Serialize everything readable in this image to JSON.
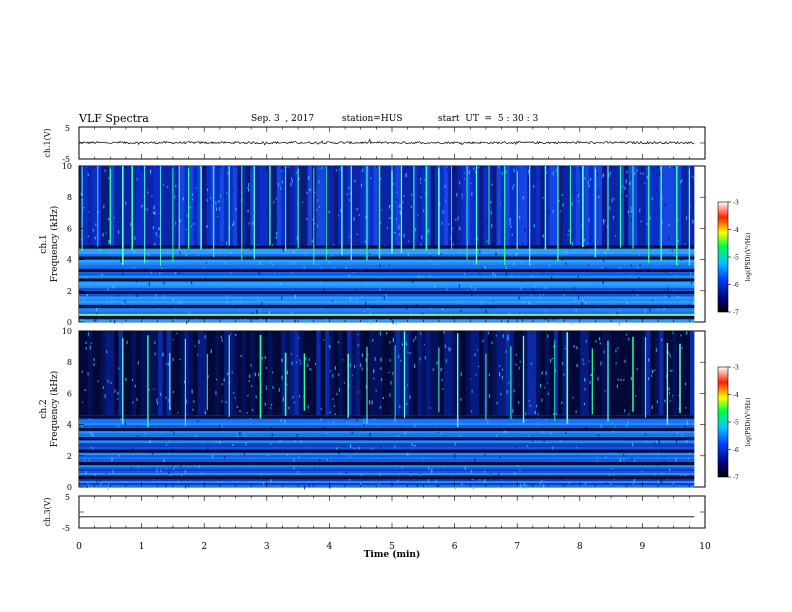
{
  "header": {
    "title": "VLF Spectra",
    "date": "Sep. 3  , 2017",
    "station": "station=HUS",
    "start": "start  UT  =  5 : 30 : 3"
  },
  "chart_data": [
    {
      "type": "line",
      "name": "ch1-waveform",
      "ylabel": "ch.1(V)",
      "ylim": [
        -5,
        5
      ],
      "yticks": [
        "5",
        "-5"
      ],
      "xlim": [
        0,
        10
      ],
      "baseline": 0.1,
      "noise": 0.35
    },
    {
      "type": "heatmap",
      "name": "ch1-spectrogram",
      "ylabel": "ch.1 Frequency (kHz)",
      "ylabel_line1": "ch.1",
      "ylabel_line2": "Frequency (kHz)",
      "ylim": [
        0,
        10
      ],
      "yticks": [
        "0",
        "2",
        "4",
        "6",
        "8",
        "10"
      ],
      "xlim": [
        0,
        10
      ],
      "data_xmax": 9.83,
      "colorbar": {
        "label": "log(PSD)(V²/Hz)",
        "range": [
          -7,
          -3
        ],
        "ticks": [
          "-3",
          "-4",
          "-5",
          "-6",
          "-7"
        ]
      },
      "dark_bands_khz": [
        0.3,
        1.0,
        1.9,
        2.7,
        3.3,
        4.1,
        4.8
      ],
      "bright_line_khz": 0.45,
      "spikes_min": [
        0.05,
        0.3,
        0.5,
        0.7,
        0.85,
        1.05,
        1.3,
        1.5,
        1.6,
        1.75,
        1.95,
        2.15,
        2.4,
        2.6,
        2.8,
        3.05,
        3.3,
        3.5,
        3.75,
        3.95,
        4.2,
        4.35,
        4.6,
        4.8,
        5.0,
        5.15,
        5.35,
        5.55,
        5.75,
        5.95,
        6.2,
        6.35,
        6.55,
        6.8,
        7.0,
        7.2,
        7.45,
        7.65,
        7.85,
        8.05,
        8.25,
        8.45,
        8.65,
        8.85,
        9.1,
        9.3,
        9.55,
        9.75
      ]
    },
    {
      "type": "heatmap",
      "name": "ch2-spectrogram",
      "ylabel": "ch.2 Frequency (kHz)",
      "ylabel_line1": "ch.2",
      "ylabel_line2": "Frequency (kHz)",
      "ylim": [
        0,
        10
      ],
      "yticks": [
        "0",
        "2",
        "4",
        "6",
        "8",
        "10"
      ],
      "xlim": [
        0,
        10
      ],
      "data_xmax": 9.83,
      "colorbar": {
        "label": "log(PSD)(V²/Hz)",
        "range": [
          -7,
          -3
        ],
        "ticks": [
          "-3",
          "-4",
          "-5",
          "-6",
          "-7"
        ]
      },
      "dark_bands_khz": [
        0.6,
        1.5,
        2.3,
        3.1,
        3.7,
        4.5
      ],
      "spikes_min": [
        0.7,
        1.1,
        1.45,
        1.7,
        2.05,
        2.4,
        2.9,
        3.3,
        3.6,
        4.3,
        4.6,
        5.05,
        5.2,
        5.75,
        6.05,
        6.5,
        6.9,
        7.1,
        7.6,
        7.8,
        8.2,
        8.45,
        8.85,
        9.05,
        9.4,
        9.6
      ]
    },
    {
      "type": "line",
      "name": "ch3-waveform",
      "ylabel": "ch.3(V)",
      "ylim": [
        -5,
        5
      ],
      "yticks": [
        "5",
        "-5"
      ],
      "xlim": [
        0,
        10
      ],
      "baseline": -1.5,
      "noise": 0
    }
  ],
  "xaxis": {
    "label": "Time  (min)",
    "ticks": [
      "0",
      "1",
      "2",
      "3",
      "4",
      "5",
      "6",
      "7",
      "8",
      "9",
      "10"
    ]
  }
}
